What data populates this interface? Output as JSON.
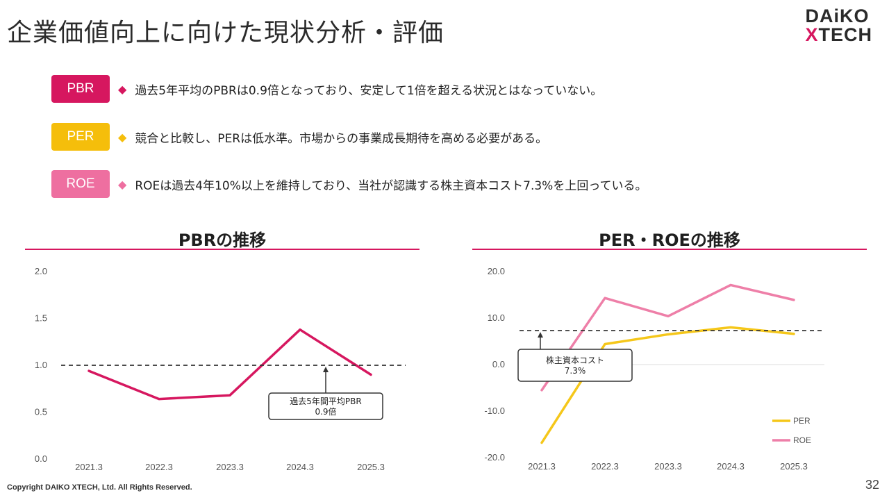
{
  "page": {
    "title": "企業価値向上に向けた現状分析・評価",
    "logo_top": "DAiKO",
    "logo_bottom_x": "X",
    "logo_bottom_rest": "TECH",
    "footer": "Copyright DAIKO XTECH, Ltd. All Rights Reserved.",
    "page_number": "32"
  },
  "items": [
    {
      "badge": "PBR",
      "color": "#d6175f",
      "diamond": "◆",
      "text": "過去5年平均のPBRは0.9倍となっており、安定して1倍を超える状況とはなっていない。"
    },
    {
      "badge": "PER",
      "color": "#f5be0b",
      "diamond": "◆",
      "text": "競合と比較し、PERは低水準。市場からの事業成長期待を高める必要がある。"
    },
    {
      "badge": "ROE",
      "color": "#ee6fa0",
      "diamond": "◆",
      "text": "ROEは過去4年10%以上を維持しており、当社が認識する株主資本コスト7.3%を上回っている。"
    }
  ],
  "chart_data": [
    {
      "type": "line",
      "title": "PBRの推移",
      "categories": [
        "2021.3",
        "2022.3",
        "2023.3",
        "2024.3",
        "2025.3"
      ],
      "series": [
        {
          "name": "PBR",
          "values": [
            0.94,
            0.64,
            0.68,
            1.38,
            0.9
          ],
          "color": "#d6175f"
        }
      ],
      "ylim": [
        0,
        2.0
      ],
      "yticks": [
        "0.0",
        "0.5",
        "1.0",
        "1.5",
        "2.0"
      ],
      "reference_line": 1.0,
      "annotation": {
        "line1": "過去5年間平均PBR",
        "line2": "0.9倍"
      },
      "legend": false
    },
    {
      "type": "line",
      "title": "PER・ROEの推移",
      "categories": [
        "2021.3",
        "2022.3",
        "2023.3",
        "2024.3",
        "2025.3"
      ],
      "series": [
        {
          "name": "PER",
          "values": [
            -16.8,
            4.4,
            6.5,
            8.0,
            6.6
          ],
          "color": "#f5c71a"
        },
        {
          "name": "ROE",
          "values": [
            -5.5,
            14.3,
            10.4,
            17.1,
            13.9
          ],
          "color": "#ee7fa8"
        }
      ],
      "ylim": [
        -20.0,
        20.0
      ],
      "yticks": [
        "-20.0",
        "-10.0",
        "0.0",
        "10.0",
        "20.0"
      ],
      "reference_line": 7.3,
      "annotation": {
        "line1": "株主資本コスト",
        "line2": "7.3%"
      },
      "legend": true
    }
  ]
}
